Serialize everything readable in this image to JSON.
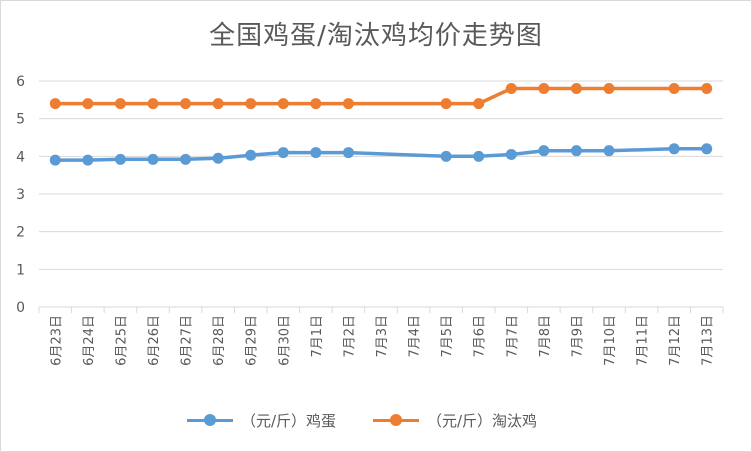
{
  "chart_data": {
    "type": "line",
    "title": "全国鸡蛋/淘汰鸡均价走势图",
    "categories": [
      "6月23日",
      "6月24日",
      "6月25日",
      "6月26日",
      "6月27日",
      "6月28日",
      "6月29日",
      "6月30日",
      "7月1日",
      "7月2日",
      "7月3日",
      "7月4日",
      "7月5日",
      "7月6日",
      "7月7日",
      "7月8日",
      "7月9日",
      "7月10日",
      "7月11日",
      "7月12日",
      "7月13日"
    ],
    "series": [
      {
        "name": "（元/斤）鸡蛋",
        "color": "#5B9BD5",
        "values": [
          3.9,
          3.9,
          3.92,
          3.92,
          3.92,
          3.95,
          4.03,
          4.1,
          4.1,
          4.1,
          null,
          null,
          4.0,
          4.0,
          4.05,
          4.15,
          4.15,
          4.15,
          null,
          4.2,
          4.2
        ]
      },
      {
        "name": "（元/斤）淘汰鸡",
        "color": "#ED7D31",
        "values": [
          5.4,
          5.4,
          5.4,
          5.4,
          5.4,
          5.4,
          5.4,
          5.4,
          5.4,
          5.4,
          null,
          null,
          5.4,
          5.4,
          5.8,
          5.8,
          5.8,
          5.8,
          null,
          5.8,
          5.8
        ]
      }
    ],
    "ylim": [
      0,
      6
    ],
    "yticks": [
      0,
      1,
      2,
      3,
      4,
      5,
      6
    ],
    "grid": true,
    "legend_position": "bottom"
  }
}
